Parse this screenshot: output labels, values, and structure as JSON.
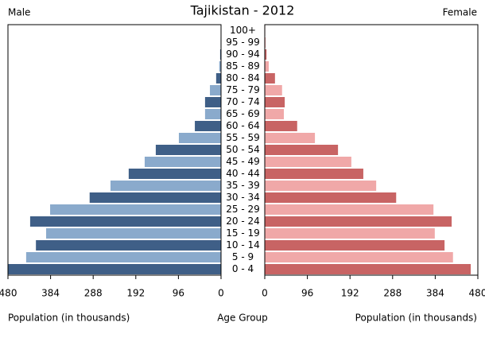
{
  "chart_data": {
    "type": "pyramid",
    "title": "Tajikistan - 2012",
    "categories": [
      "0 - 4",
      "5 - 9",
      "10 - 14",
      "15 - 19",
      "20 - 24",
      "25 - 29",
      "30 - 34",
      "35 - 39",
      "40 - 44",
      "45 - 49",
      "50 - 54",
      "55 - 59",
      "60 - 64",
      "65 - 69",
      "70 - 74",
      "75 - 79",
      "80 - 84",
      "85 - 89",
      "90 - 94",
      "95 - 99",
      "100+"
    ],
    "series": [
      {
        "name": "Male",
        "colors": [
          "#3f5f87",
          "#8aaacc"
        ],
        "values": [
          480,
          439,
          417,
          394,
          430,
          385,
          296,
          249,
          208,
          172,
          147,
          95,
          59,
          36,
          36,
          25,
          11,
          4,
          2,
          1,
          0
        ]
      },
      {
        "name": "Female",
        "colors": [
          "#c86464",
          "#f0a8a8"
        ],
        "values": [
          464,
          424,
          405,
          383,
          421,
          380,
          296,
          251,
          222,
          195,
          165,
          113,
          73,
          43,
          45,
          39,
          23,
          9,
          4,
          2,
          1
        ]
      }
    ],
    "xlim": [
      0,
      480
    ],
    "xticks": [
      0,
      96,
      192,
      288,
      384,
      480
    ],
    "xlabel": "Population (in thousands)",
    "ylabel": "Age Group"
  }
}
